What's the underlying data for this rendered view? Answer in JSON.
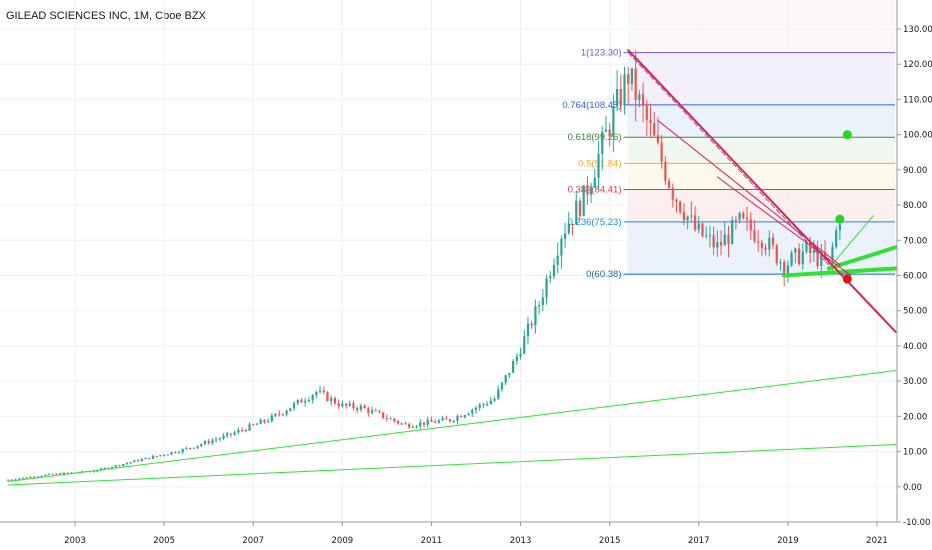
{
  "title": "GILEAD SCIENCES INC, 1M, Cboe BZX",
  "colors": {
    "up": "#26a69a",
    "down": "#ef5350",
    "grid": "#eef0f3",
    "axis": "#131722",
    "trend_green": "#35e035",
    "trend_red": "#e0204a",
    "dot_green": "#1fd81f",
    "dot_red": "#e81010"
  },
  "chart_data": {
    "type": "candlestick",
    "title": "GILEAD SCIENCES INC, 1M, Cboe BZX",
    "ylim": [
      -10,
      135
    ],
    "y_ticks": [
      "130.00",
      "120.00",
      "110.00",
      "100.00",
      "90.00",
      "80.00",
      "70.00",
      "60.00",
      "50.00",
      "40.00",
      "30.00",
      "20.00",
      "10.00",
      "0.00",
      "-10.00"
    ],
    "x_ticks": [
      "2003",
      "2005",
      "2007",
      "2009",
      "2011",
      "2013",
      "2015",
      "2017",
      "2019",
      "2021"
    ],
    "grid": true,
    "fibonacci": {
      "levels": [
        {
          "ratio": "1",
          "price": "123.30",
          "label": "1(123.30)",
          "color": "#7e57c2"
        },
        {
          "ratio": "0.764",
          "price": "108.45",
          "label": "0.764(108.45)",
          "color": "#2962ff"
        },
        {
          "ratio": "0.618",
          "price": "99.26",
          "label": "0.618(99.26)",
          "color": "#388e3c"
        },
        {
          "ratio": "0.5",
          "price": "91.84",
          "label": "0.5(91.84)",
          "color": "#f9a825"
        },
        {
          "ratio": "0.382",
          "price": "84.41",
          "label": "0.382(84.41)",
          "color": "#e53935"
        },
        {
          "ratio": "0.236",
          "price": "75.23",
          "label": "0.236(75.23)",
          "color": "#1e88e5"
        },
        {
          "ratio": "0",
          "price": "60.38",
          "label": "0(60.38)",
          "color": "#1565c0"
        }
      ]
    },
    "price_path": [
      [
        "2001-07",
        2.0
      ],
      [
        "2002-06",
        3.5
      ],
      [
        "2003-06",
        4.5
      ],
      [
        "2004-06",
        7.5
      ],
      [
        "2005-06",
        10.5
      ],
      [
        "2006-06",
        14.5
      ],
      [
        "2007-06",
        19.5
      ],
      [
        "2008-06",
        27.0
      ],
      [
        "2009-01",
        23.0
      ],
      [
        "2009-06",
        22.5
      ],
      [
        "2010-06",
        17.5
      ],
      [
        "2011-06",
        19.0
      ],
      [
        "2012-06",
        25.0
      ],
      [
        "2012-12",
        37.0
      ],
      [
        "2013-06",
        52.0
      ],
      [
        "2013-12",
        72.0
      ],
      [
        "2014-06",
        82.0
      ],
      [
        "2014-12",
        100.0
      ],
      [
        "2015-06",
        117.0
      ],
      [
        "2015-12",
        101.0
      ],
      [
        "2016-06",
        84.0
      ],
      [
        "2016-12",
        73.0
      ],
      [
        "2017-06",
        68.0
      ],
      [
        "2017-12",
        75.0
      ],
      [
        "2018-06",
        71.0
      ],
      [
        "2018-12",
        63.0
      ],
      [
        "2019-06",
        67.0
      ],
      [
        "2019-12",
        63.0
      ],
      [
        "2020-03",
        77.0
      ]
    ],
    "trendlines": [
      {
        "name": "green-lower-long",
        "from": [
          "2001-07",
          0.5
        ],
        "to": [
          "2021-06",
          12.0
        ],
        "color": "#35e035",
        "width": 1
      },
      {
        "name": "green-upper-long",
        "from": [
          "2001-07",
          1.5
        ],
        "to": [
          "2021-06",
          33.0
        ],
        "color": "#35e035",
        "width": 1
      },
      {
        "name": "green-support-flat",
        "from": [
          "2018-12",
          60.0
        ],
        "to": [
          "2021-06",
          62.0
        ],
        "color": "#35e035",
        "width": 4
      },
      {
        "name": "green-support-rise",
        "from": [
          "2019-12",
          62.0
        ],
        "to": [
          "2021-06",
          68.0
        ],
        "color": "#35e035",
        "width": 4
      },
      {
        "name": "green-thin-rise",
        "from": [
          "2019-12",
          62.0
        ],
        "to": [
          "2020-12",
          77.0
        ],
        "color": "#35e035",
        "width": 1
      },
      {
        "name": "red-downtrend",
        "from": [
          "2015-06",
          124.0
        ],
        "to": [
          "2021-06",
          44.0
        ],
        "color": "#e0204a",
        "width": 2
      },
      {
        "name": "red-inner",
        "from": [
          "2016-02",
          104.0
        ],
        "to": [
          "2020-03",
          63.0
        ],
        "color": "#e0204a",
        "width": 1
      },
      {
        "name": "red-flat-down",
        "from": [
          "2017-06",
          88.0
        ],
        "to": [
          "2020-06",
          60.0
        ],
        "color": "#e0204a",
        "width": 1
      },
      {
        "name": "purple-dashed",
        "from": [
          "2015-06",
          123.3
        ],
        "to": [
          "2019-12",
          63.0
        ],
        "color": "#7e57c2",
        "width": 1
      }
    ],
    "markers": [
      {
        "name": "green-target-dot",
        "date": "2020-05",
        "price": 100.0,
        "color": "#1fd81f"
      },
      {
        "name": "green-mid-dot",
        "date": "2020-03",
        "price": 76.0,
        "color": "#1fd81f"
      },
      {
        "name": "red-low-dot",
        "date": "2020-05",
        "price": 59.0,
        "color": "#e81010"
      }
    ]
  }
}
